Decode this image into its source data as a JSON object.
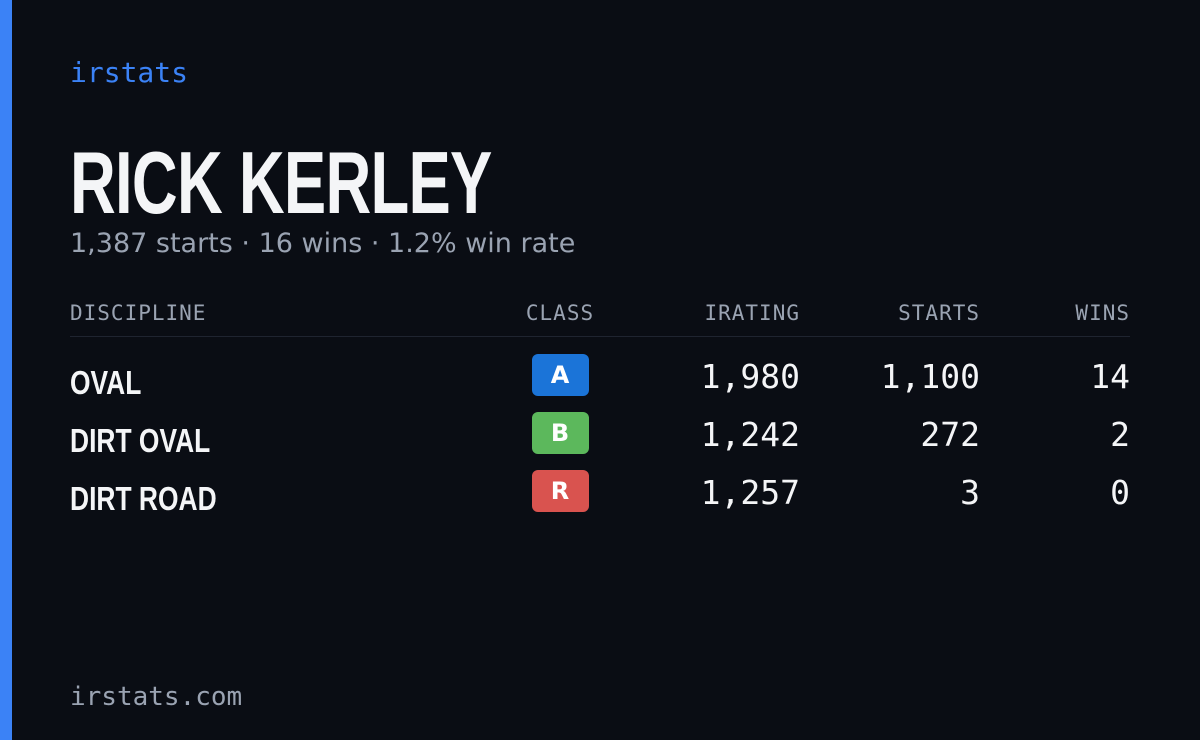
{
  "brand": "irstats",
  "driver": {
    "name": "RICK KERLEY",
    "summary": "1,387 starts · 16 wins · 1.2% win rate"
  },
  "table": {
    "headers": [
      "DISCIPLINE",
      "CLASS",
      "IRATING",
      "STARTS",
      "WINS"
    ],
    "rows": [
      {
        "discipline": "OVAL",
        "class": "A",
        "class_color": "#1b74d8",
        "irating": "1,980",
        "starts": "1,100",
        "wins": "14"
      },
      {
        "discipline": "DIRT OVAL",
        "class": "B",
        "class_color": "#5cb85c",
        "irating": "1,242",
        "starts": "272",
        "wins": "2"
      },
      {
        "discipline": "DIRT ROAD",
        "class": "R",
        "class_color": "#d9534f",
        "irating": "1,257",
        "starts": "3",
        "wins": "0"
      }
    ]
  },
  "footer": "irstats.com"
}
